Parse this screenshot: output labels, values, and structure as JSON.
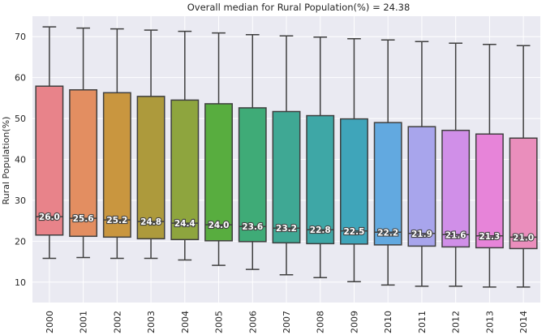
{
  "chart_data": {
    "type": "box",
    "title": "Overall median for Rural Population(%) = 24.38",
    "xlabel": "",
    "ylabel": "Rural Population(%)",
    "ylim": [
      5,
      75
    ],
    "yticks": [
      10,
      20,
      30,
      40,
      50,
      60,
      70
    ],
    "grid": true,
    "categories": [
      "2000",
      "2001",
      "2002",
      "2003",
      "2004",
      "2005",
      "2006",
      "2007",
      "2008",
      "2009",
      "2010",
      "2011",
      "2012",
      "2013",
      "2014"
    ],
    "boxes": [
      {
        "whisker_low": 15.8,
        "q1": 21.5,
        "median": 26.0,
        "q3": 57.9,
        "whisker_high": 72.4,
        "label": "26.0",
        "color": "#e8838a"
      },
      {
        "whisker_low": 16.0,
        "q1": 21.2,
        "median": 25.6,
        "q3": 57.0,
        "whisker_high": 72.1,
        "label": "25.6",
        "color": "#e38e61"
      },
      {
        "whisker_low": 15.8,
        "q1": 21.0,
        "median": 25.2,
        "q3": 56.3,
        "whisker_high": 71.9,
        "label": "25.2",
        "color": "#c9963f"
      },
      {
        "whisker_low": 15.8,
        "q1": 20.6,
        "median": 24.8,
        "q3": 55.4,
        "whisker_high": 71.6,
        "label": "24.8",
        "color": "#ad9a3c"
      },
      {
        "whisker_low": 15.4,
        "q1": 20.4,
        "median": 24.4,
        "q3": 54.5,
        "whisker_high": 71.3,
        "label": "24.4",
        "color": "#8ea53e"
      },
      {
        "whisker_low": 14.1,
        "q1": 20.1,
        "median": 24.0,
        "q3": 53.6,
        "whisker_high": 70.9,
        "label": "24.0",
        "color": "#58ad3f"
      },
      {
        "whisker_low": 13.1,
        "q1": 19.9,
        "median": 23.6,
        "q3": 52.6,
        "whisker_high": 70.5,
        "label": "23.6",
        "color": "#3fab77"
      },
      {
        "whisker_low": 11.8,
        "q1": 19.6,
        "median": 23.2,
        "q3": 51.7,
        "whisker_high": 70.2,
        "label": "23.2",
        "color": "#3fa894"
      },
      {
        "whisker_low": 11.1,
        "q1": 19.4,
        "median": 22.8,
        "q3": 50.7,
        "whisker_high": 69.9,
        "label": "22.8",
        "color": "#3ea7a6"
      },
      {
        "whisker_low": 10.1,
        "q1": 19.3,
        "median": 22.5,
        "q3": 49.9,
        "whisker_high": 69.5,
        "label": "22.5",
        "color": "#3fa5ba"
      },
      {
        "whisker_low": 9.3,
        "q1": 19.1,
        "median": 22.2,
        "q3": 49.0,
        "whisker_high": 69.2,
        "label": "22.2",
        "color": "#62a9e0"
      },
      {
        "whisker_low": 9.0,
        "q1": 18.8,
        "median": 21.9,
        "q3": 48.0,
        "whisker_high": 68.8,
        "label": "21.9",
        "color": "#a8a5ec"
      },
      {
        "whisker_low": 9.0,
        "q1": 18.6,
        "median": 21.6,
        "q3": 47.1,
        "whisker_high": 68.4,
        "label": "21.6",
        "color": "#d08fe8"
      },
      {
        "whisker_low": 8.8,
        "q1": 18.4,
        "median": 21.3,
        "q3": 46.2,
        "whisker_high": 68.1,
        "label": "21.3",
        "color": "#e784d9"
      },
      {
        "whisker_low": 8.8,
        "q1": 18.2,
        "median": 21.0,
        "q3": 45.2,
        "whisker_high": 67.8,
        "label": "21.0",
        "color": "#ea8ebc"
      }
    ]
  },
  "colors": {
    "plot_background": "#eaeaf2",
    "grid": "#ffffff",
    "box_edge": "#3f3f3f",
    "text": "#262626"
  }
}
